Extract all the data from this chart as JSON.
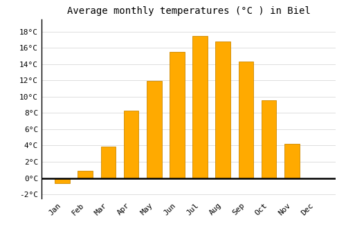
{
  "title": "Average monthly temperatures (°C ) in Biel",
  "months": [
    "Jan",
    "Feb",
    "Mar",
    "Apr",
    "May",
    "Jun",
    "Jul",
    "Aug",
    "Sep",
    "Oct",
    "Nov",
    "Dec"
  ],
  "temperatures": [
    -0.6,
    0.9,
    3.9,
    8.3,
    11.9,
    15.5,
    17.5,
    16.8,
    14.3,
    9.6,
    4.2,
    0.0
  ],
  "bar_color": "#FFAA00",
  "bar_edge_color": "#CC8800",
  "background_color": "#FFFFFF",
  "plot_bg_color": "#FFFFFF",
  "ylim": [
    -2.5,
    19.5
  ],
  "yticks": [
    -2,
    0,
    2,
    4,
    6,
    8,
    10,
    12,
    14,
    16,
    18
  ],
  "ytick_labels": [
    "-2°C",
    "0°C",
    "2°C",
    "4°C",
    "6°C",
    "8°C",
    "10°C",
    "12°C",
    "14°C",
    "16°C",
    "18°C"
  ],
  "title_fontsize": 10,
  "tick_fontsize": 8,
  "grid_color": "#DDDDDD",
  "bar_width": 0.65
}
